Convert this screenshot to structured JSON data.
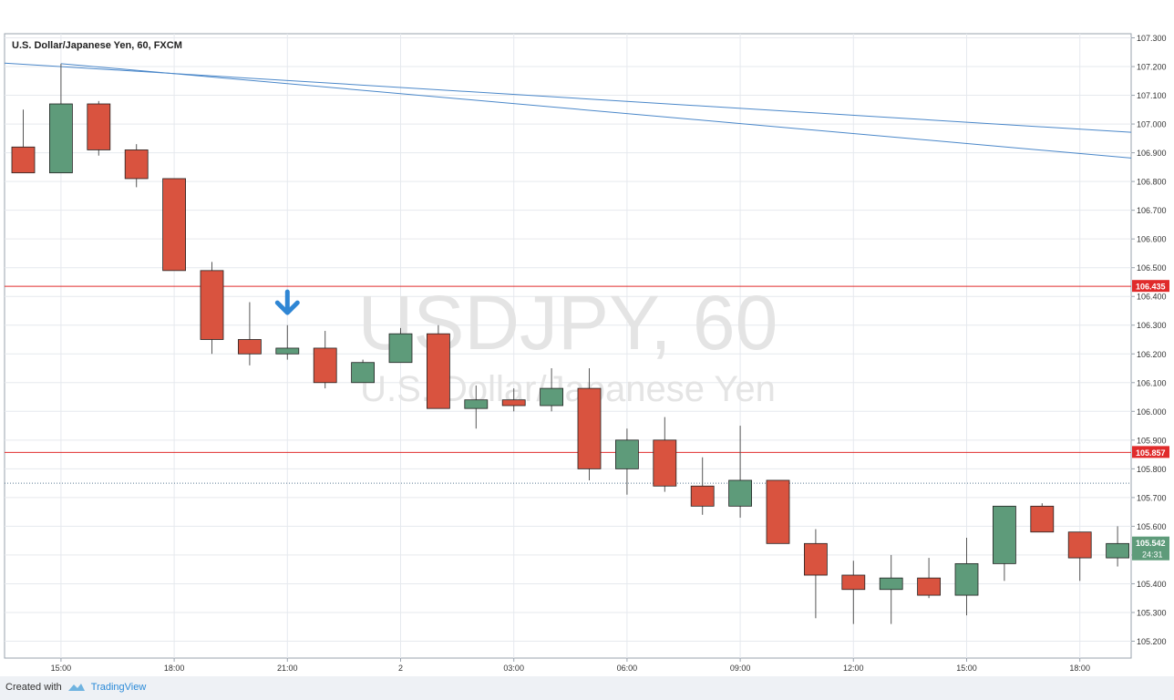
{
  "header": {
    "title": "U.S. Dollar/Japanese Yen, 60, FXCM"
  },
  "watermark": {
    "symbol": "USDJPY, 60",
    "name": "U.S. Dollar/Japanese Yen"
  },
  "footer": {
    "created_with": "Created with",
    "brand": "TradingView"
  },
  "colors": {
    "up": "#5e9b7a",
    "down": "#d9533f",
    "grid": "#e6e9ee",
    "trend": "#4a87c9",
    "level": "#e02b2b",
    "arrow": "#2f86d4"
  },
  "chart_data": {
    "type": "candlestick",
    "symbol": "USDJPY",
    "interval": "60",
    "ylim": [
      105.15,
      107.31
    ],
    "y_ticks": [
      "107.300",
      "107.200",
      "107.100",
      "107.000",
      "106.900",
      "106.800",
      "106.700",
      "106.600",
      "106.500",
      "106.400",
      "106.300",
      "106.200",
      "106.100",
      "106.000",
      "105.900",
      "105.800",
      "105.700",
      "105.600",
      "105.500",
      "105.400",
      "105.300",
      "105.200"
    ],
    "x_ticks": [
      {
        "label": "15:00",
        "bar": 1
      },
      {
        "label": "18:00",
        "bar": 4
      },
      {
        "label": "21:00",
        "bar": 7
      },
      {
        "label": "2",
        "bar": 10
      },
      {
        "label": "03:00",
        "bar": 13
      },
      {
        "label": "06:00",
        "bar": 16
      },
      {
        "label": "09:00",
        "bar": 19
      },
      {
        "label": "12:00",
        "bar": 22
      },
      {
        "label": "15:00",
        "bar": 25
      },
      {
        "label": "18:00",
        "bar": 28
      }
    ],
    "candles": [
      {
        "o": 106.92,
        "h": 107.05,
        "l": 106.83,
        "c": 106.83
      },
      {
        "o": 106.83,
        "h": 107.21,
        "l": 106.83,
        "c": 107.07
      },
      {
        "o": 107.07,
        "h": 107.08,
        "l": 106.89,
        "c": 106.91
      },
      {
        "o": 106.91,
        "h": 106.93,
        "l": 106.78,
        "c": 106.81
      },
      {
        "o": 106.81,
        "h": 106.81,
        "l": 106.49,
        "c": 106.49
      },
      {
        "o": 106.49,
        "h": 106.52,
        "l": 106.2,
        "c": 106.25
      },
      {
        "o": 106.25,
        "h": 106.38,
        "l": 106.16,
        "c": 106.2
      },
      {
        "o": 106.2,
        "h": 106.3,
        "l": 106.18,
        "c": 106.22
      },
      {
        "o": 106.22,
        "h": 106.28,
        "l": 106.08,
        "c": 106.1
      },
      {
        "o": 106.1,
        "h": 106.18,
        "l": 106.1,
        "c": 106.17
      },
      {
        "o": 106.17,
        "h": 106.29,
        "l": 106.17,
        "c": 106.27
      },
      {
        "o": 106.27,
        "h": 106.3,
        "l": 106.01,
        "c": 106.01
      },
      {
        "o": 106.01,
        "h": 106.09,
        "l": 105.94,
        "c": 106.04
      },
      {
        "o": 106.04,
        "h": 106.08,
        "l": 106.0,
        "c": 106.02
      },
      {
        "o": 106.02,
        "h": 106.15,
        "l": 106.0,
        "c": 106.08
      },
      {
        "o": 106.08,
        "h": 106.15,
        "l": 105.76,
        "c": 105.8
      },
      {
        "o": 105.8,
        "h": 105.94,
        "l": 105.71,
        "c": 105.9
      },
      {
        "o": 105.9,
        "h": 105.98,
        "l": 105.72,
        "c": 105.74
      },
      {
        "o": 105.74,
        "h": 105.84,
        "l": 105.64,
        "c": 105.67
      },
      {
        "o": 105.67,
        "h": 105.95,
        "l": 105.63,
        "c": 105.76
      },
      {
        "o": 105.76,
        "h": 105.76,
        "l": 105.54,
        "c": 105.54
      },
      {
        "o": 105.54,
        "h": 105.59,
        "l": 105.28,
        "c": 105.43
      },
      {
        "o": 105.43,
        "h": 105.48,
        "l": 105.26,
        "c": 105.38
      },
      {
        "o": 105.38,
        "h": 105.5,
        "l": 105.26,
        "c": 105.42
      },
      {
        "o": 105.42,
        "h": 105.49,
        "l": 105.35,
        "c": 105.36
      },
      {
        "o": 105.36,
        "h": 105.56,
        "l": 105.29,
        "c": 105.47
      },
      {
        "o": 105.47,
        "h": 105.67,
        "l": 105.41,
        "c": 105.67
      },
      {
        "o": 105.67,
        "h": 105.68,
        "l": 105.58,
        "c": 105.58
      },
      {
        "o": 105.58,
        "h": 105.58,
        "l": 105.41,
        "c": 105.49
      },
      {
        "o": 105.49,
        "h": 105.6,
        "l": 105.46,
        "c": 105.54
      }
    ],
    "horizontal_levels": [
      {
        "value": 106.435,
        "label": "106.435"
      },
      {
        "value": 105.857,
        "label": "105.857"
      }
    ],
    "dotted_level": 105.75,
    "trend_lines": [
      {
        "from": {
          "bar": -1.5,
          "price": 107.22
        },
        "to": {
          "bar": 29.5,
          "price": 106.97
        }
      },
      {
        "from": {
          "bar": 1,
          "price": 107.21
        },
        "to": {
          "bar": 29.5,
          "price": 106.88
        }
      }
    ],
    "down_arrow": {
      "bar": 7,
      "price": 106.34
    },
    "last_price": {
      "value": 105.542,
      "label": "105.542",
      "countdown": "24:31"
    }
  }
}
